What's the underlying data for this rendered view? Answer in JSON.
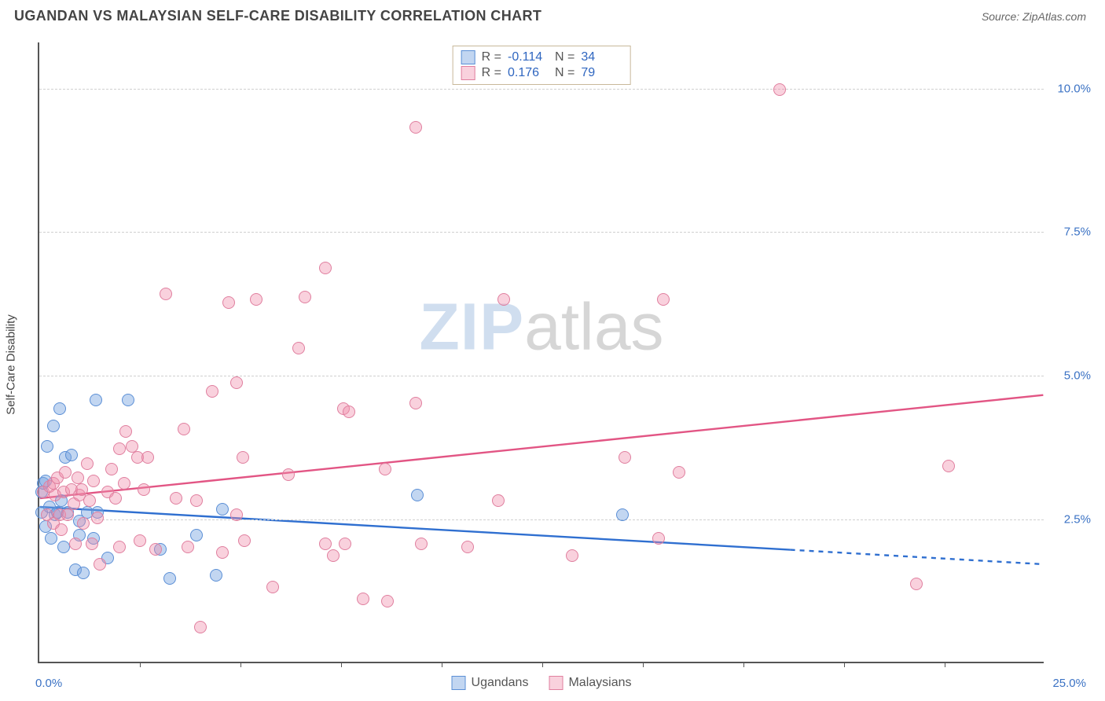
{
  "title": "UGANDAN VS MALAYSIAN SELF-CARE DISABILITY CORRELATION CHART",
  "source_prefix": "Source: ",
  "source_name": "ZipAtlas.com",
  "watermark_zip": "ZIP",
  "watermark_atlas": "atlas",
  "y_axis_title": "Self-Care Disability",
  "chart": {
    "type": "scatter",
    "xlim": [
      0,
      25
    ],
    "ylim": [
      0,
      10.8
    ],
    "x_tick_step": 2.5,
    "x_origin_label": "0.0%",
    "x_max_label": "25.0%",
    "y_ticks": [
      2.5,
      5.0,
      7.5,
      10.0
    ],
    "y_tick_labels": [
      "2.5%",
      "5.0%",
      "7.5%",
      "10.0%"
    ],
    "grid_color": "#d0d0d0",
    "axis_color": "#555555",
    "background_color": "#ffffff",
    "tick_label_color": "#3b72c4",
    "series": [
      {
        "name": "Ugandans",
        "color_fill": "rgba(120,165,225,0.45)",
        "color_stroke": "#5b8fd6",
        "marker_size": 16,
        "trend": {
          "y_at_x0": 2.7,
          "y_at_x20": 1.9,
          "solid_until_x": 18.7,
          "color": "#2f6fd0",
          "width": 2.4
        },
        "R": "-0.114",
        "N": "34",
        "points": [
          [
            0.05,
            2.95
          ],
          [
            0.05,
            2.6
          ],
          [
            0.1,
            3.1
          ],
          [
            0.15,
            2.35
          ],
          [
            0.15,
            3.15
          ],
          [
            0.2,
            3.75
          ],
          [
            0.25,
            2.7
          ],
          [
            0.3,
            2.15
          ],
          [
            0.35,
            4.1
          ],
          [
            0.4,
            2.55
          ],
          [
            0.45,
            2.6
          ],
          [
            0.5,
            4.4
          ],
          [
            0.55,
            2.8
          ],
          [
            0.6,
            2.0
          ],
          [
            0.65,
            3.55
          ],
          [
            0.7,
            2.6
          ],
          [
            0.8,
            3.6
          ],
          [
            0.9,
            1.6
          ],
          [
            1.0,
            2.2
          ],
          [
            1.0,
            2.45
          ],
          [
            1.1,
            1.55
          ],
          [
            1.2,
            2.6
          ],
          [
            1.35,
            2.15
          ],
          [
            1.4,
            4.55
          ],
          [
            1.45,
            2.6
          ],
          [
            1.7,
            1.8
          ],
          [
            2.2,
            4.55
          ],
          [
            3.0,
            1.95
          ],
          [
            3.25,
            1.45
          ],
          [
            3.9,
            2.2
          ],
          [
            4.4,
            1.5
          ],
          [
            4.55,
            2.65
          ],
          [
            9.4,
            2.9
          ],
          [
            14.5,
            2.55
          ]
        ]
      },
      {
        "name": "Malaysians",
        "color_fill": "rgba(240,140,170,0.40)",
        "color_stroke": "#e07f9f",
        "marker_size": 16,
        "trend": {
          "y_at_x0": 2.85,
          "y_at_x25": 4.65,
          "color": "#e25584",
          "width": 2.4
        },
        "R": "0.176",
        "N": "79",
        "points": [
          [
            0.1,
            2.95
          ],
          [
            0.2,
            2.55
          ],
          [
            0.25,
            3.05
          ],
          [
            0.35,
            2.4
          ],
          [
            0.35,
            3.1
          ],
          [
            0.4,
            2.9
          ],
          [
            0.45,
            3.2
          ],
          [
            0.5,
            2.55
          ],
          [
            0.55,
            2.3
          ],
          [
            0.6,
            2.95
          ],
          [
            0.65,
            3.3
          ],
          [
            0.7,
            2.55
          ],
          [
            0.8,
            3.0
          ],
          [
            0.85,
            2.75
          ],
          [
            0.9,
            2.05
          ],
          [
            0.95,
            3.2
          ],
          [
            1.0,
            2.9
          ],
          [
            1.05,
            3.0
          ],
          [
            1.1,
            2.4
          ],
          [
            1.2,
            3.45
          ],
          [
            1.25,
            2.8
          ],
          [
            1.3,
            2.05
          ],
          [
            1.35,
            3.15
          ],
          [
            1.45,
            2.5
          ],
          [
            1.5,
            1.7
          ],
          [
            1.7,
            2.95
          ],
          [
            1.8,
            3.35
          ],
          [
            1.9,
            2.85
          ],
          [
            2.0,
            3.7
          ],
          [
            2.0,
            2.0
          ],
          [
            2.1,
            3.1
          ],
          [
            2.15,
            4.0
          ],
          [
            2.3,
            3.75
          ],
          [
            2.45,
            3.55
          ],
          [
            2.5,
            2.1
          ],
          [
            2.6,
            3.0
          ],
          [
            2.7,
            3.55
          ],
          [
            2.9,
            1.95
          ],
          [
            3.15,
            6.4
          ],
          [
            3.4,
            2.85
          ],
          [
            3.6,
            4.05
          ],
          [
            3.7,
            2.0
          ],
          [
            3.9,
            2.8
          ],
          [
            4.0,
            0.6
          ],
          [
            4.3,
            4.7
          ],
          [
            4.55,
            1.9
          ],
          [
            4.7,
            6.25
          ],
          [
            4.9,
            2.55
          ],
          [
            4.9,
            4.85
          ],
          [
            5.05,
            3.55
          ],
          [
            5.1,
            2.1
          ],
          [
            5.4,
            6.3
          ],
          [
            5.8,
            1.3
          ],
          [
            6.2,
            3.25
          ],
          [
            6.45,
            5.45
          ],
          [
            6.6,
            6.35
          ],
          [
            7.1,
            2.05
          ],
          [
            7.1,
            6.85
          ],
          [
            7.3,
            1.85
          ],
          [
            7.55,
            4.4
          ],
          [
            7.6,
            2.05
          ],
          [
            7.7,
            4.35
          ],
          [
            8.05,
            1.1
          ],
          [
            8.6,
            3.35
          ],
          [
            8.65,
            1.05
          ],
          [
            9.35,
            4.5
          ],
          [
            9.35,
            9.3
          ],
          [
            9.5,
            2.05
          ],
          [
            10.65,
            2.0
          ],
          [
            11.4,
            2.8
          ],
          [
            11.55,
            6.3
          ],
          [
            13.25,
            1.85
          ],
          [
            14.55,
            3.55
          ],
          [
            15.4,
            2.15
          ],
          [
            15.5,
            6.3
          ],
          [
            15.9,
            3.3
          ],
          [
            18.4,
            9.95
          ],
          [
            21.8,
            1.35
          ],
          [
            22.6,
            3.4
          ]
        ]
      }
    ]
  },
  "legend": {
    "R_label": "R =",
    "N_label": "N ="
  }
}
